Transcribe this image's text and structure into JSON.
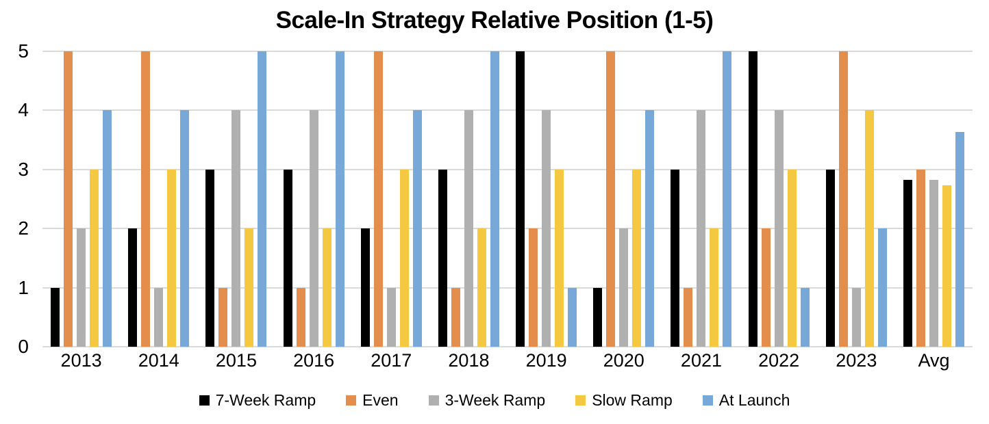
{
  "chart_data": {
    "type": "bar",
    "title": "Scale-In Strategy Relative Position (1-5)",
    "xlabel": "",
    "ylabel": "",
    "ylim": [
      0,
      5
    ],
    "yticks": [
      0,
      1,
      2,
      3,
      4,
      5
    ],
    "grid": true,
    "legend_position": "bottom",
    "categories": [
      "2013",
      "2014",
      "2015",
      "2016",
      "2017",
      "2018",
      "2019",
      "2020",
      "2021",
      "2022",
      "2023",
      "Avg"
    ],
    "series": [
      {
        "name": "7-Week Ramp",
        "color": "#000000",
        "values": [
          1,
          2,
          3,
          3,
          2,
          3,
          5,
          1,
          3,
          5,
          3,
          2.82
        ]
      },
      {
        "name": "Even",
        "color": "#e48e4d",
        "values": [
          5,
          5,
          1,
          1,
          5,
          1,
          2,
          5,
          1,
          2,
          5,
          3.0
        ]
      },
      {
        "name": "3-Week Ramp",
        "color": "#b0b0b0",
        "values": [
          2,
          1,
          4,
          4,
          1,
          4,
          4,
          2,
          4,
          4,
          1,
          2.82
        ]
      },
      {
        "name": "Slow Ramp",
        "color": "#f5c842",
        "values": [
          3,
          3,
          2,
          2,
          3,
          2,
          3,
          3,
          2,
          3,
          4,
          2.73
        ]
      },
      {
        "name": "At Launch",
        "color": "#78a8d8",
        "values": [
          4,
          4,
          5,
          5,
          4,
          5,
          1,
          4,
          5,
          1,
          2,
          3.64
        ]
      }
    ],
    "gridline_color": "#dadada"
  }
}
